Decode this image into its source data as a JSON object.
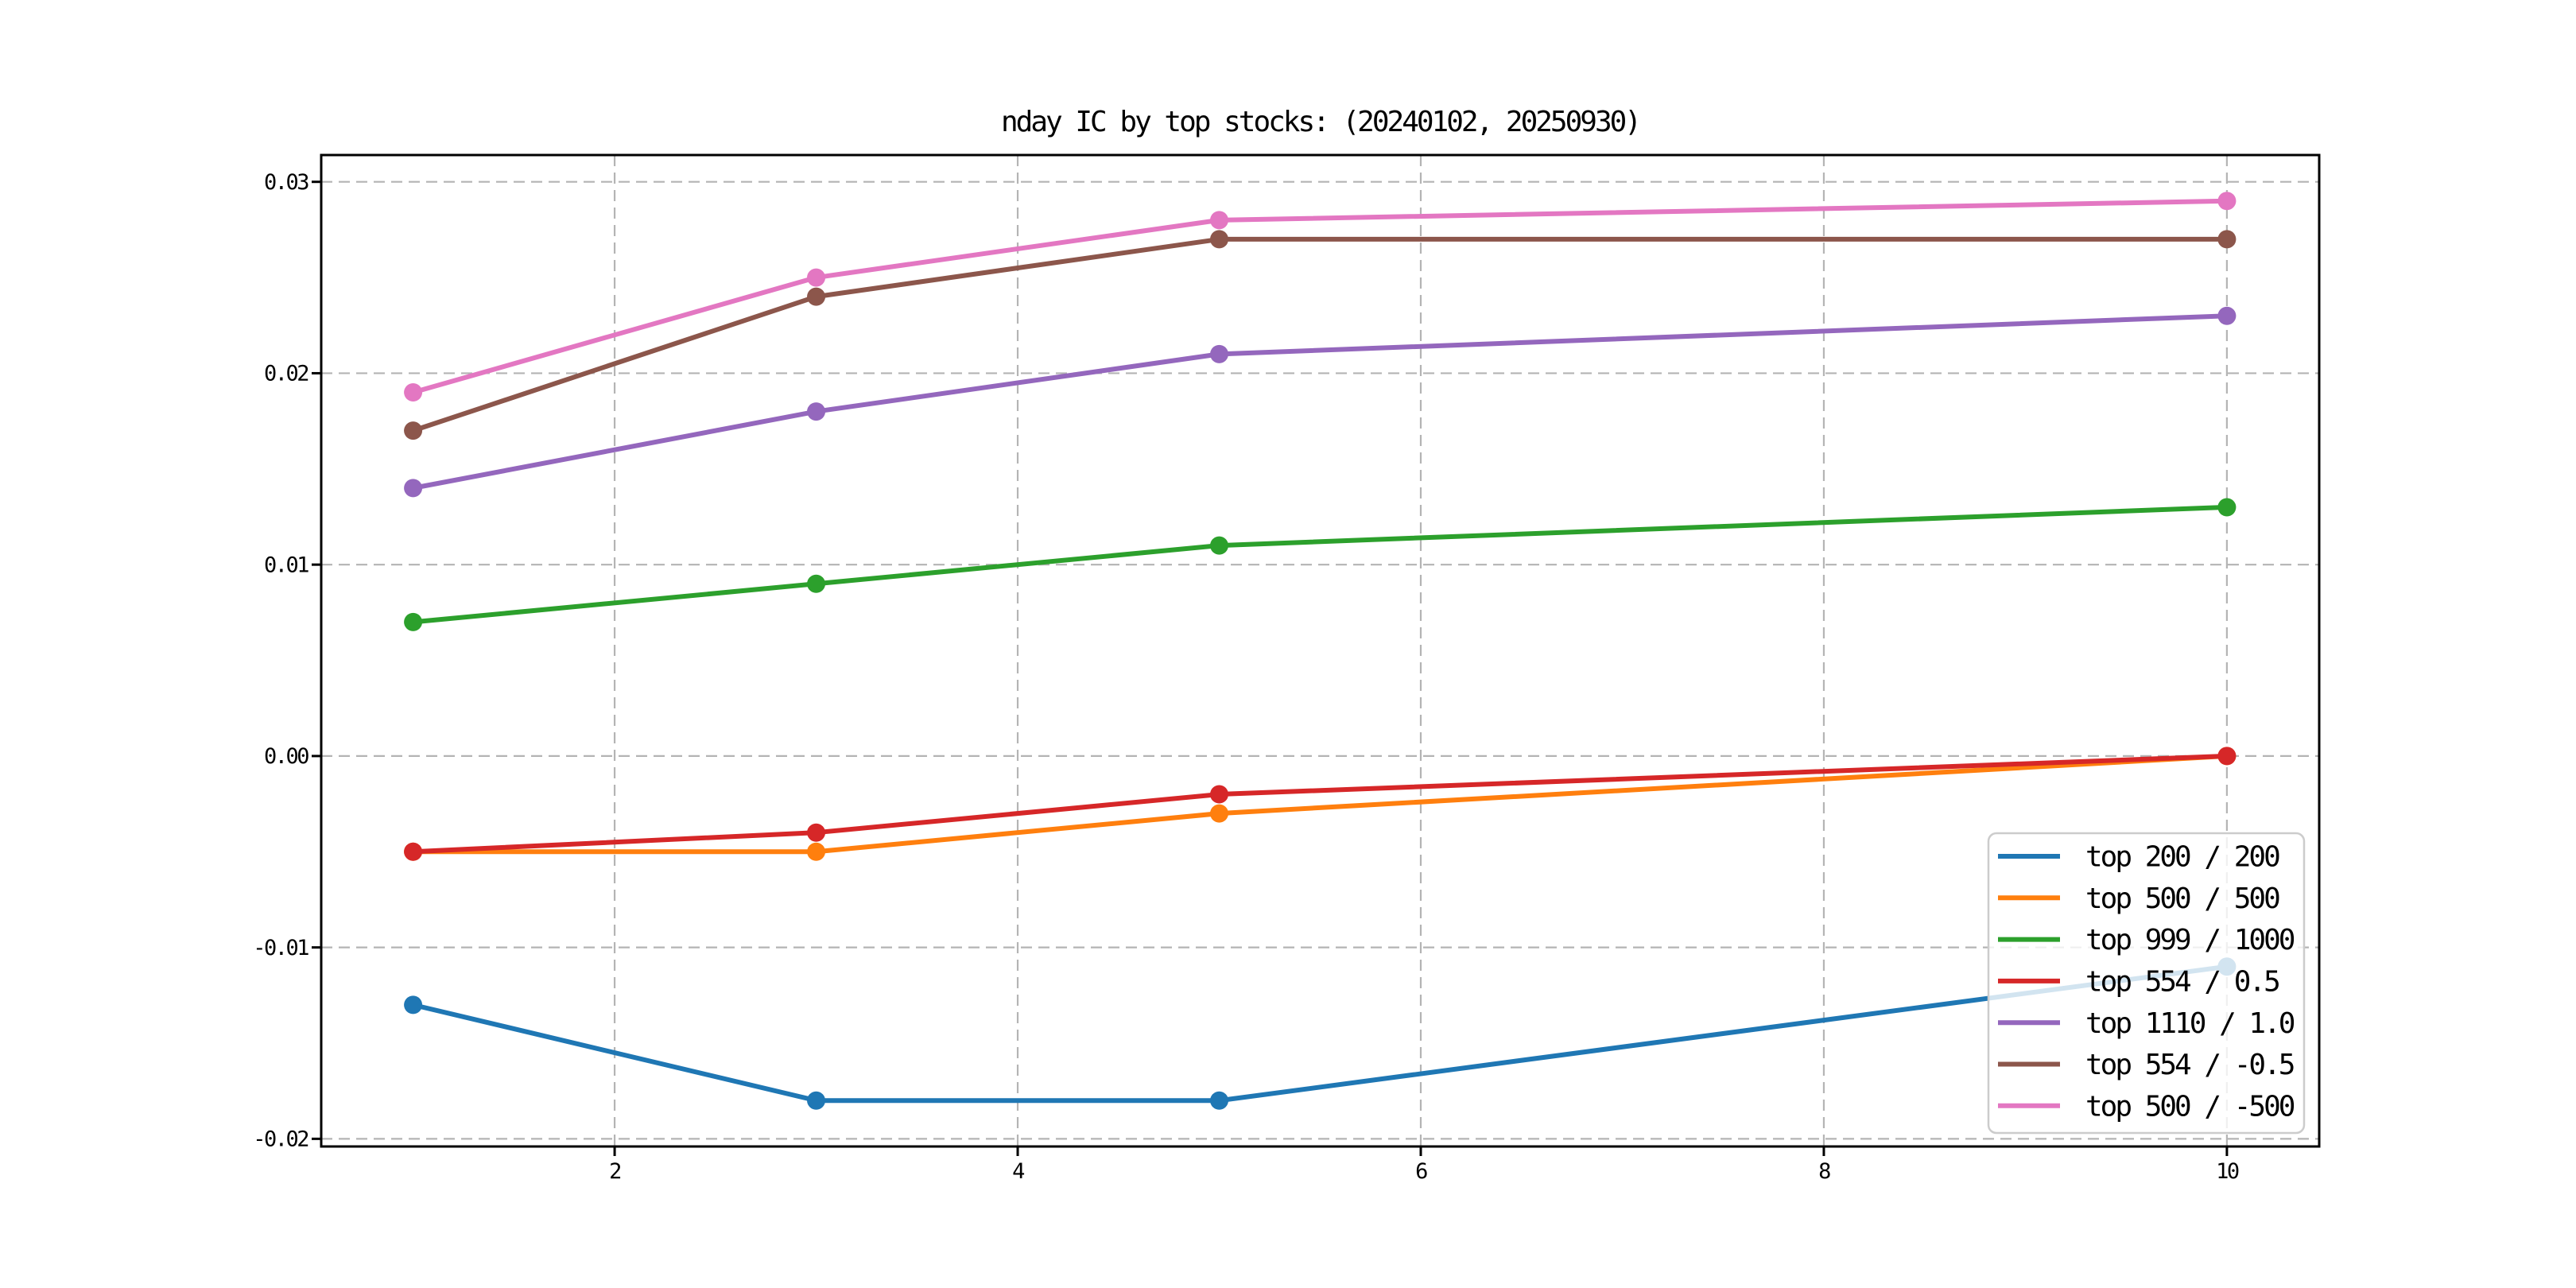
{
  "chart_data": {
    "type": "line",
    "title": "nday IC by top stocks: (20240102, 20250930)",
    "x": [
      1,
      3,
      5,
      10
    ],
    "series": [
      {
        "name": "top 200 / 200",
        "color": "#1f77b4",
        "values": [
          -0.013,
          -0.018,
          -0.018,
          -0.011
        ]
      },
      {
        "name": "top 500 / 500",
        "color": "#ff7f0e",
        "values": [
          -0.005,
          -0.005,
          -0.003,
          0.0
        ]
      },
      {
        "name": "top 999 / 1000",
        "color": "#2ca02c",
        "values": [
          0.007,
          0.009,
          0.011,
          0.013
        ]
      },
      {
        "name": "top 554 / 0.5",
        "color": "#d62728",
        "values": [
          -0.005,
          -0.004,
          -0.002,
          0.0
        ]
      },
      {
        "name": "top 1110 / 1.0",
        "color": "#9467bd",
        "values": [
          0.014,
          0.018,
          0.021,
          0.023
        ]
      },
      {
        "name": "top 554 / -0.5",
        "color": "#8c564b",
        "values": [
          0.017,
          0.024,
          0.027,
          0.027
        ]
      },
      {
        "name": "top 500 / -500",
        "color": "#e377c2",
        "values": [
          0.019,
          0.025,
          0.028,
          0.029
        ]
      }
    ],
    "xticks": {
      "values": [
        2,
        4,
        6,
        8,
        10
      ],
      "labels": [
        "2",
        "4",
        "6",
        "8",
        "10"
      ]
    },
    "yticks": {
      "values": [
        0.03,
        0.02,
        0.01,
        0.0,
        -0.01,
        -0.02
      ],
      "labels": [
        "0.03",
        "0.02",
        "0.01",
        "0.00",
        "-0.01",
        "-0.02"
      ]
    },
    "xlim": [
      0.544,
      10.458
    ],
    "ylim": [
      -0.0204,
      0.0314
    ],
    "grid": true,
    "grid_style": "dashed",
    "grid_color": "#b4b4b4",
    "axis_color": "#000000",
    "background": "#ffffff",
    "marker": "circle",
    "legend": {
      "position": "lower right"
    }
  }
}
